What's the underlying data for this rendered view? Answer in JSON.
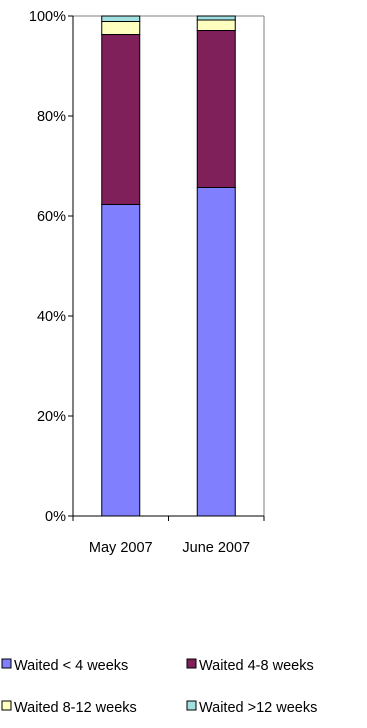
{
  "chart_data": {
    "type": "bar",
    "stacked": true,
    "percent": true,
    "categories": [
      "May 2007",
      "June 2007"
    ],
    "series": [
      {
        "name": "Waited < 4 weeks",
        "color": "#8080FF",
        "values": [
          62.3,
          65.7
        ]
      },
      {
        "name": "Waited 4-8 weeks",
        "color": "#80205A",
        "values": [
          34.0,
          31.4
        ]
      },
      {
        "name": "Waited 8-12 weeks",
        "color": "#FFFFC0",
        "values": [
          2.6,
          2.1
        ]
      },
      {
        "name": "Waited >12 weeks",
        "color": "#A0E0E0",
        "values": [
          1.1,
          0.8
        ]
      }
    ],
    "ylim": [
      0,
      100
    ],
    "yticks": [
      "0%",
      "20%",
      "40%",
      "60%",
      "80%",
      "100%"
    ],
    "grid": false,
    "legend_position": "bottom"
  }
}
